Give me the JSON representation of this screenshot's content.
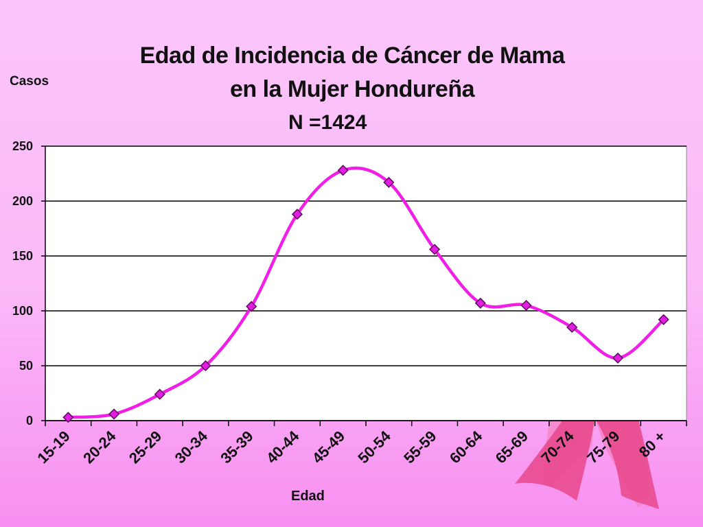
{
  "chart_data": {
    "type": "line",
    "title": "Edad de Incidencia de Cáncer de Mama",
    "title_line2": "en la Mujer Hondureña",
    "subtitle": "N =1424",
    "ylabel": "Casos",
    "xlabel": "Edad",
    "categories": [
      "15-19",
      "20-24",
      "25-29",
      "30-34",
      "35-39",
      "40-44",
      "45-49",
      "50-54",
      "55-59",
      "60-64",
      "65-69",
      "70-74",
      "75-79",
      "80 +"
    ],
    "values": [
      3,
      6,
      24,
      50,
      104,
      188,
      228,
      217,
      156,
      107,
      105,
      85,
      57,
      92
    ],
    "ylim": [
      0,
      250
    ],
    "yticks": [
      "0",
      "50",
      "100",
      "150",
      "200",
      "250"
    ],
    "grid": "horizontal",
    "colors": {
      "line": "#f01ee6",
      "marker_fill": "#e21ce0",
      "marker_stroke": "#5a0a5a",
      "ribbon": "#e8468a"
    }
  }
}
